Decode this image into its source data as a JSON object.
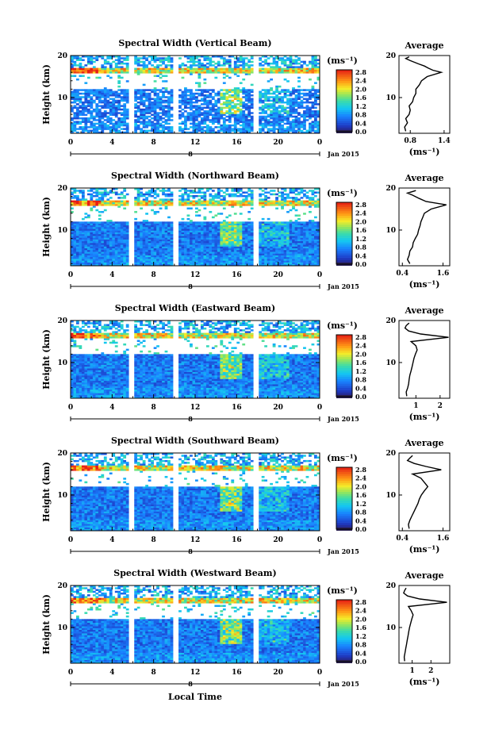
{
  "chart_data": [
    {
      "type": "heatmap",
      "title": "Spectral Width (Vertical Beam)",
      "ylabel": "Height (km)",
      "yticks": [
        "20",
        "10"
      ],
      "xticks": [
        "0",
        "4",
        "8",
        "12",
        "16",
        "20",
        "0"
      ],
      "date_label": "Jan 2015",
      "xsub": "8",
      "cbar_unit": "(ms⁻¹)",
      "cbar_ticks": [
        "2.8",
        "2.4",
        "2.0",
        "1.6",
        "1.2",
        "0.8",
        "0.4",
        "0.0"
      ],
      "avg": {
        "title": "Average",
        "yticks": [
          "20",
          "10"
        ],
        "xticks": [
          "0.8",
          "1.4"
        ],
        "xunit": "(ms⁻¹)",
        "xlim": [
          0.6,
          1.5
        ],
        "profile": [
          [
            0.72,
            2
          ],
          [
            0.7,
            3
          ],
          [
            0.75,
            4
          ],
          [
            0.72,
            5
          ],
          [
            0.78,
            6
          ],
          [
            0.8,
            7
          ],
          [
            0.78,
            8
          ],
          [
            0.84,
            9
          ],
          [
            0.86,
            10
          ],
          [
            0.9,
            11
          ],
          [
            0.9,
            12
          ],
          [
            0.96,
            13
          ],
          [
            1.0,
            14
          ],
          [
            1.1,
            15
          ],
          [
            1.35,
            16
          ],
          [
            1.2,
            16.5
          ],
          [
            1.12,
            17
          ],
          [
            1.05,
            17.5
          ],
          [
            0.95,
            18
          ],
          [
            0.8,
            18.8
          ],
          [
            0.72,
            19.3
          ],
          [
            0.78,
            19.7
          ]
        ]
      }
    },
    {
      "type": "heatmap",
      "title": "Spectral Width (Northward Beam)",
      "ylabel": "Height (km)",
      "yticks": [
        "20",
        "10"
      ],
      "xticks": [
        "0",
        "4",
        "8",
        "12",
        "16",
        "20",
        "0"
      ],
      "date_label": "Jan 2015",
      "xsub": "8",
      "cbar_unit": "(ms⁻¹)",
      "cbar_ticks": [
        "2.8",
        "2.4",
        "2.0",
        "1.6",
        "1.2",
        "0.8",
        "0.4",
        "0.0"
      ],
      "avg": {
        "title": "Average",
        "yticks": [
          "20",
          "10"
        ],
        "xticks": [
          "0.4",
          "1.6"
        ],
        "xunit": "(ms⁻¹)",
        "xlim": [
          0.3,
          1.8
        ],
        "profile": [
          [
            0.62,
            2
          ],
          [
            0.55,
            3
          ],
          [
            0.6,
            4
          ],
          [
            0.62,
            5
          ],
          [
            0.7,
            6
          ],
          [
            0.72,
            7
          ],
          [
            0.78,
            8
          ],
          [
            0.85,
            9
          ],
          [
            0.88,
            10
          ],
          [
            0.92,
            11
          ],
          [
            0.95,
            12
          ],
          [
            1.0,
            13
          ],
          [
            1.05,
            14
          ],
          [
            1.25,
            15
          ],
          [
            1.7,
            16
          ],
          [
            1.1,
            16.8
          ],
          [
            0.9,
            17.5
          ],
          [
            0.7,
            18.3
          ],
          [
            0.55,
            18.8
          ],
          [
            0.8,
            19.4
          ]
        ]
      }
    },
    {
      "type": "heatmap",
      "title": "Spectral Width (Eastward Beam)",
      "ylabel": "Height (km)",
      "yticks": [
        "20",
        "10"
      ],
      "xticks": [
        "0",
        "4",
        "8",
        "12",
        "16",
        "20",
        "0"
      ],
      "date_label": "Jan 2015",
      "xsub": "8",
      "cbar_unit": "(ms⁻¹)",
      "cbar_ticks": [
        "2.8",
        "2.4",
        "2.0",
        "1.6",
        "1.2",
        "0.8",
        "0.4",
        "0.0"
      ],
      "avg": {
        "title": "Average",
        "yticks": [
          "20",
          "10"
        ],
        "xticks": [
          "1",
          "2"
        ],
        "xunit": "(ms⁻¹)",
        "xlim": [
          0.3,
          2.4
        ],
        "profile": [
          [
            0.62,
            2
          ],
          [
            0.6,
            3
          ],
          [
            0.66,
            4
          ],
          [
            0.7,
            5
          ],
          [
            0.72,
            6
          ],
          [
            0.75,
            7
          ],
          [
            0.8,
            8
          ],
          [
            0.84,
            9
          ],
          [
            0.88,
            10
          ],
          [
            0.92,
            11
          ],
          [
            0.98,
            12
          ],
          [
            1.05,
            13
          ],
          [
            1.0,
            14
          ],
          [
            0.8,
            15
          ],
          [
            2.35,
            16
          ],
          [
            1.2,
            16.8
          ],
          [
            0.7,
            17.5
          ],
          [
            0.55,
            18.2
          ],
          [
            0.6,
            18.8
          ],
          [
            0.72,
            19.4
          ]
        ]
      }
    },
    {
      "type": "heatmap",
      "title": "Spectral Width (Southward Beam)",
      "ylabel": "Height (km)",
      "yticks": [
        "20",
        "10"
      ],
      "xticks": [
        "0",
        "4",
        "8",
        "12",
        "16",
        "20",
        "0"
      ],
      "date_label": "Jan 2015",
      "xsub": "8",
      "cbar_unit": "(ms⁻¹)",
      "cbar_ticks": [
        "2.8",
        "2.4",
        "2.0",
        "1.6",
        "1.2",
        "0.8",
        "0.4",
        "0.0"
      ],
      "avg": {
        "title": "Average",
        "yticks": [
          "20",
          "10"
        ],
        "xticks": [
          "0.4",
          "1.6"
        ],
        "xunit": "(ms⁻¹)",
        "xlim": [
          0.3,
          1.8
        ],
        "profile": [
          [
            0.6,
            2
          ],
          [
            0.58,
            3
          ],
          [
            0.62,
            4
          ],
          [
            0.68,
            5
          ],
          [
            0.74,
            6
          ],
          [
            0.8,
            7
          ],
          [
            0.86,
            8
          ],
          [
            0.9,
            9
          ],
          [
            0.96,
            10
          ],
          [
            1.05,
            11
          ],
          [
            1.15,
            12
          ],
          [
            1.05,
            13
          ],
          [
            0.95,
            14
          ],
          [
            0.7,
            15
          ],
          [
            1.55,
            16
          ],
          [
            1.1,
            16.8
          ],
          [
            0.75,
            17.5
          ],
          [
            0.55,
            18.2
          ],
          [
            0.62,
            18.8
          ],
          [
            0.7,
            19.4
          ]
        ]
      }
    },
    {
      "type": "heatmap",
      "title": "Spectral Width (Westward Beam)",
      "ylabel": "Height (km)",
      "yticks": [
        "20",
        "10"
      ],
      "xticks": [
        "0",
        "4",
        "8",
        "12",
        "16",
        "20",
        "0"
      ],
      "date_label": "Jan 2015",
      "xsub": "8",
      "xlabel": "Local Time",
      "cbar_unit": "(ms⁻¹)",
      "cbar_ticks": [
        "2.8",
        "2.4",
        "2.0",
        "1.6",
        "1.2",
        "0.8",
        "0.4",
        "0.0"
      ],
      "avg": {
        "title": "Average",
        "yticks": [
          "20",
          "10"
        ],
        "xticks": [
          "1",
          "2"
        ],
        "xunit": "(ms⁻¹)",
        "xlim": [
          0.3,
          3.0
        ],
        "profile": [
          [
            0.6,
            2
          ],
          [
            0.58,
            3
          ],
          [
            0.62,
            4
          ],
          [
            0.66,
            5
          ],
          [
            0.7,
            6
          ],
          [
            0.74,
            7
          ],
          [
            0.78,
            8
          ],
          [
            0.82,
            9
          ],
          [
            0.86,
            10
          ],
          [
            0.92,
            11
          ],
          [
            0.98,
            12
          ],
          [
            1.05,
            13
          ],
          [
            0.95,
            14
          ],
          [
            0.8,
            15
          ],
          [
            2.85,
            16
          ],
          [
            1.4,
            16.8
          ],
          [
            0.75,
            17.5
          ],
          [
            0.55,
            18.2
          ],
          [
            0.6,
            18.8
          ],
          [
            0.68,
            19.4
          ]
        ]
      }
    }
  ]
}
